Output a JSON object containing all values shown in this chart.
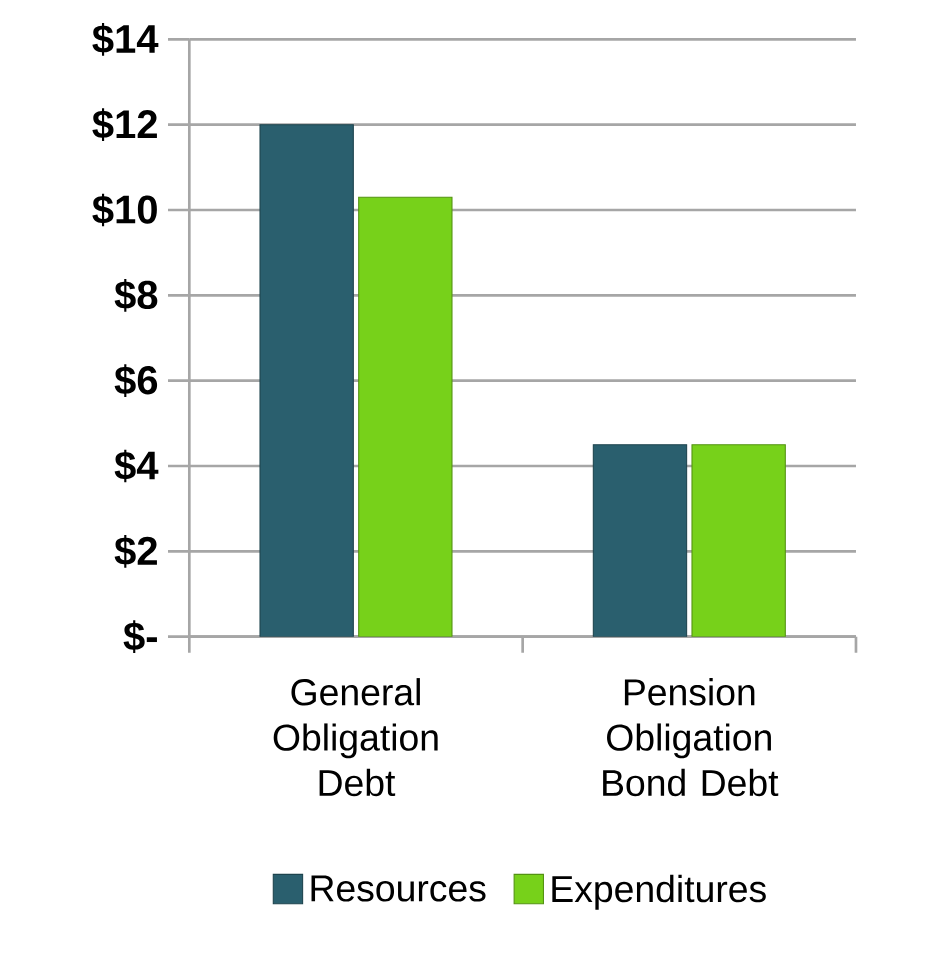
{
  "chart_data": {
    "type": "bar",
    "categories": [
      "General Obligation Debt",
      "Pension Obligation Bond Debt"
    ],
    "series": [
      {
        "name": "Resources",
        "color": "#2a5f6e",
        "values": [
          12.0,
          4.5
        ]
      },
      {
        "name": "Expenditures",
        "color": "#77d11a",
        "values": [
          10.3,
          4.5
        ]
      }
    ],
    "ylim": [
      0,
      14
    ],
    "yticks": [
      {
        "value": 0,
        "label": "$-"
      },
      {
        "value": 2,
        "label": "$2"
      },
      {
        "value": 4,
        "label": "$4"
      },
      {
        "value": 6,
        "label": "$6"
      },
      {
        "value": 8,
        "label": "$8"
      },
      {
        "value": 10,
        "label": "$10"
      },
      {
        "value": 12,
        "label": "$12"
      },
      {
        "value": 14,
        "label": "$14"
      }
    ],
    "grid": "y",
    "legend": "bottom"
  }
}
